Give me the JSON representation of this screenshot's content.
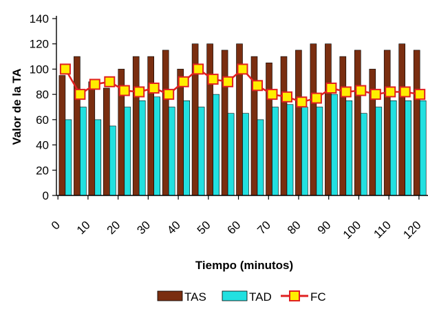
{
  "chart_data": {
    "type": "bar",
    "xlabel": "Tiempo (minutos)",
    "ylabel": "Valor de la TA",
    "ylim": [
      0,
      140
    ],
    "yticks": [
      0,
      20,
      40,
      60,
      80,
      100,
      120,
      140
    ],
    "xticks": [
      "0",
      "10",
      "20",
      "30",
      "40",
      "50",
      "60",
      "70",
      "80",
      "90",
      "100",
      "110",
      "120"
    ],
    "grid": false,
    "legend": "bottom",
    "series": [
      {
        "name": "TAS",
        "kind": "bar",
        "color": "#7a2e10",
        "values": [
          95,
          110,
          90,
          85,
          100,
          110,
          110,
          115,
          100,
          120,
          120,
          115,
          120,
          110,
          105,
          110,
          115,
          120,
          120,
          110,
          115,
          100,
          115,
          120,
          115
        ]
      },
      {
        "name": "TAD",
        "kind": "bar",
        "color": "#22e0e0",
        "values": [
          60,
          70,
          60,
          55,
          70,
          75,
          78,
          70,
          75,
          70,
          80,
          65,
          65,
          60,
          70,
          72,
          70,
          70,
          80,
          75,
          65,
          70,
          75,
          75,
          75
        ]
      },
      {
        "name": "FC",
        "kind": "line",
        "color": "#e02020",
        "marker_fill": "#ffee00",
        "values": [
          100,
          80,
          88,
          90,
          83,
          82,
          85,
          80,
          90,
          100,
          92,
          90,
          100,
          87,
          80,
          78,
          74,
          77,
          85,
          82,
          83,
          80,
          82,
          82,
          80
        ]
      }
    ]
  }
}
